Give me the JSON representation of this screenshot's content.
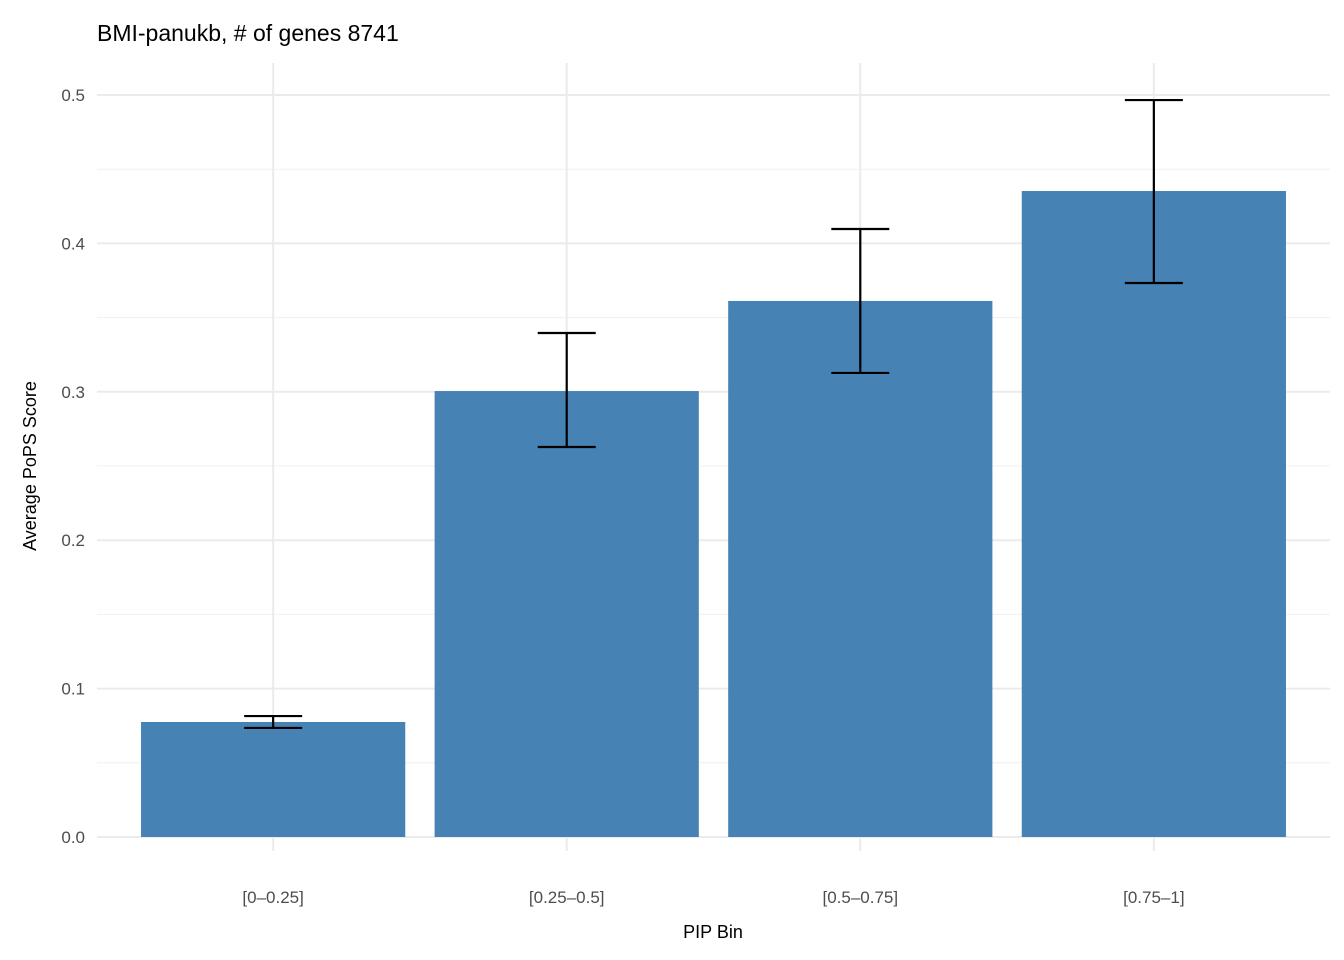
{
  "chart_data": {
    "type": "bar",
    "title": "BMI-panukb, # of genes 8741",
    "xlabel": "PIP Bin",
    "ylabel": "Average PoPS Score",
    "categories": [
      "[0–0.25]",
      "[0.25–0.5]",
      "[0.5–0.75]",
      "[0.75–1]"
    ],
    "values": [
      0.0775,
      0.3005,
      0.3612,
      0.4353
    ],
    "error_low": [
      0.0735,
      0.2628,
      0.3127,
      0.3733
    ],
    "error_high": [
      0.0815,
      0.3396,
      0.4097,
      0.4966
    ],
    "ylim": [
      -0.02,
      0.52
    ],
    "yticks": [
      0.0,
      0.1,
      0.2,
      0.3,
      0.4,
      0.5
    ],
    "ytick_labels": [
      "0.0",
      "0.1",
      "0.2",
      "0.3",
      "0.4",
      "0.5"
    ],
    "grid": true,
    "legend": "none",
    "bar_color": "#4682B4",
    "error_color": "#000000"
  }
}
